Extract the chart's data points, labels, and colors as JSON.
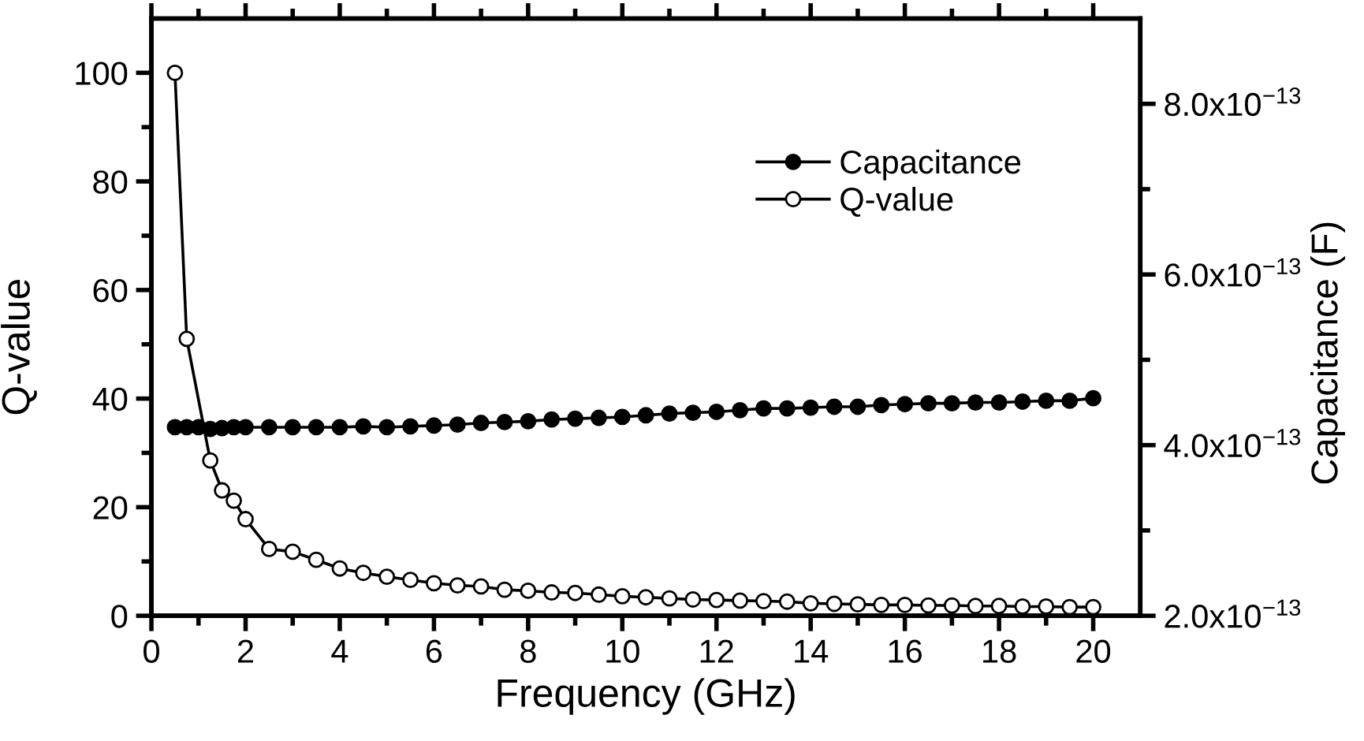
{
  "chart_data": {
    "type": "line",
    "xlabel": "Frequency (GHz)",
    "ylabel": "Q-value",
    "y2label": "Capacitance (F)",
    "marker": "circle",
    "line_style": "solid",
    "legend": "top right",
    "xlim": [
      0,
      21
    ],
    "xticks": [
      0,
      {
        "value": 1,
        "label": null
      },
      2,
      {
        "value": 3,
        "label": null
      },
      4,
      {
        "value": 5,
        "label": null
      },
      6,
      {
        "value": 7,
        "label": null
      },
      8,
      {
        "value": 9,
        "label": null
      },
      10,
      {
        "value": 11,
        "label": null
      },
      12,
      {
        "value": 13,
        "label": null
      },
      14,
      {
        "value": 15,
        "label": null
      },
      16,
      {
        "value": 17,
        "label": null
      },
      18,
      {
        "value": 19,
        "label": null
      },
      20
    ],
    "ylim": [
      0,
      110
    ],
    "yticks": [
      0,
      {
        "value": 10,
        "label": null
      },
      20,
      {
        "value": 30,
        "label": null
      },
      40,
      {
        "value": 50,
        "label": null
      },
      60,
      {
        "value": 70,
        "label": null
      },
      80,
      {
        "value": 90,
        "label": null
      },
      100
    ],
    "y2lim": [
      2e-13,
      9e-13
    ],
    "y2ticks": [
      {
        "value": 2e-13,
        "label": "2.0x10$^{−13}$"
      },
      {
        "value": 3e-13,
        "label": null
      },
      {
        "value": 4e-13,
        "label": "4.0x10$^{−13}$"
      },
      {
        "value": 5e-13,
        "label": null
      },
      {
        "value": 6e-13,
        "label": "6.0x10$^{−13}$"
      },
      {
        "value": 7e-13,
        "label": null
      },
      {
        "value": 8e-13,
        "label": "8.0x10$^{−13}$"
      }
    ],
    "x": [
      0.5,
      0.75,
      1.0,
      1.25,
      1.5,
      1.75,
      2.0,
      2.5,
      3.0,
      3.5,
      4.0,
      4.5,
      5.0,
      5.5,
      6.0,
      6.5,
      7.0,
      7.5,
      8.0,
      8.5,
      9.0,
      9.5,
      10.0,
      10.5,
      11.0,
      11.5,
      12.0,
      12.5,
      13.0,
      13.5,
      14.0,
      14.5,
      15.0,
      15.5,
      16.0,
      16.5,
      17.0,
      17.5,
      18.0,
      18.5,
      19.0,
      19.5,
      20.0
    ],
    "series": [
      {
        "name": "Capacitance",
        "color": "#000000",
        "axis": "y2",
        "values": [
          4.21e-13,
          4.21e-13,
          4.21e-13,
          4.19e-13,
          4.2e-13,
          4.21e-13,
          4.21e-13,
          4.21e-13,
          4.21e-13,
          4.21e-13,
          4.21e-13,
          4.22e-13,
          4.21e-13,
          4.22e-13,
          4.23e-13,
          4.24e-13,
          4.26e-13,
          4.27e-13,
          4.28e-13,
          4.3e-13,
          4.31e-13,
          4.32e-13,
          4.33e-13,
          4.35e-13,
          4.37e-13,
          4.38e-13,
          4.39e-13,
          4.41e-13,
          4.43e-13,
          4.43e-13,
          4.44e-13,
          4.45e-13,
          4.45e-13,
          4.47e-13,
          4.48e-13,
          4.49e-13,
          4.49e-13,
          4.5e-13,
          4.5e-13,
          4.51e-13,
          4.52e-13,
          4.52e-13,
          4.55e-13
        ]
      },
      {
        "name": "Q-value",
        "color": "#000000",
        "x": [
          0.5,
          0.75,
          1.25,
          1.5,
          1.75,
          2.0,
          2.5,
          3.0,
          3.5,
          4.0,
          4.5,
          5.0,
          5.5,
          6.0,
          6.5,
          7.0,
          7.5,
          8.0,
          8.5,
          9.0,
          9.5,
          10.0,
          10.5,
          11.0,
          11.5,
          12.0,
          12.5,
          13.0,
          13.5,
          14.0,
          14.5,
          15.0,
          15.5,
          16.0,
          16.5,
          17.0,
          17.5,
          18.0,
          18.5,
          19.0,
          19.5,
          20.0
        ],
        "values": [
          100,
          51,
          28.6,
          23.1,
          21.2,
          17.8,
          12.3,
          11.8,
          10.3,
          8.7,
          7.9,
          7.2,
          6.6,
          6.0,
          5.6,
          5.4,
          4.8,
          4.6,
          4.3,
          4.2,
          3.9,
          3.6,
          3.4,
          3.2,
          3.0,
          2.9,
          2.8,
          2.7,
          2.6,
          2.3,
          2.2,
          2.1,
          2.0,
          2.0,
          1.9,
          1.9,
          1.8,
          1.8,
          1.7,
          1.7,
          1.6,
          1.6
        ],
        "colors": [
          "#ffffff",
          "#ffffff",
          "#ffffff",
          "#ffffff",
          "#ffffff",
          "#ffffff",
          "#ffffff",
          "#ffffff",
          "#ffffff",
          "#ffffff",
          "#ffffff",
          "#ffffff",
          "#ffffff",
          "#ffffff",
          "#ffffff",
          "#ffffff",
          "#ffffff",
          "#ffffff",
          "#ffffff",
          "#ffffff",
          "#ffffff",
          "#ffffff",
          "#ffffff",
          "#ffffff",
          "#ffffff",
          "#ffffff",
          "#ffffff",
          "#ffffff",
          "#ffffff",
          "#ffffff",
          "#ffffff",
          "#ffffff",
          "#ffffff",
          "#ffffff",
          "#ffffff",
          "#ffffff",
          "#ffffff",
          "#ffffff",
          "#ffffff",
          "#ffffff",
          "#ffffff",
          "#ffffff"
        ]
      }
    ]
  }
}
